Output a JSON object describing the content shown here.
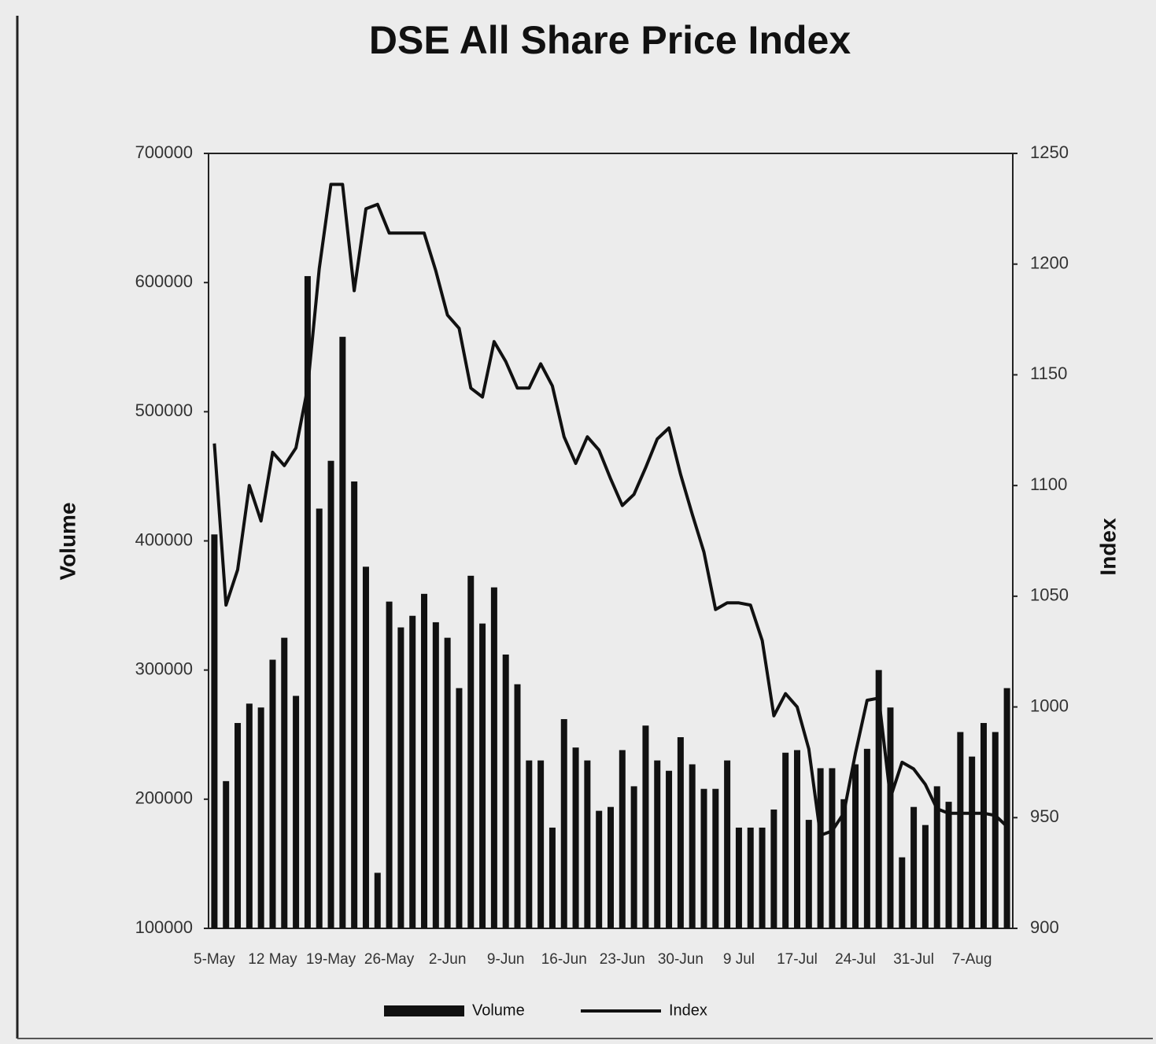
{
  "chart_data": {
    "type": "bar-line",
    "title": "DSE All Share Price Index",
    "y_label": "Volume",
    "y2_label": "Index",
    "categories": [
      "5-May",
      null,
      null,
      null,
      null,
      "12 May",
      null,
      null,
      null,
      null,
      "19-May",
      null,
      null,
      null,
      null,
      "26-May",
      null,
      null,
      null,
      null,
      "2-Jun",
      null,
      null,
      null,
      null,
      "9-Jun",
      null,
      null,
      null,
      null,
      "16-Jun",
      null,
      null,
      null,
      null,
      "23-Jun",
      null,
      null,
      null,
      null,
      "30-Jun",
      null,
      null,
      null,
      null,
      "9 Jul",
      null,
      null,
      null,
      null,
      "17-Jul",
      null,
      null,
      null,
      null,
      "24-Jul",
      null,
      null,
      null,
      null,
      "31-Jul",
      null,
      null,
      null,
      null,
      "7-Aug",
      null,
      null,
      null
    ],
    "series": [
      {
        "name": "Volume",
        "type": "bar",
        "color": "#111111",
        "values": [
          405000,
          214000,
          259000,
          274000,
          271000,
          308000,
          325000,
          280000,
          605000,
          425000,
          462000,
          558000,
          446000,
          380000,
          143000,
          353000,
          333000,
          342000,
          359000,
          337000,
          325000,
          286000,
          373000,
          336000,
          364000,
          312000,
          289000,
          230000,
          230000,
          178000,
          262000,
          240000,
          230000,
          191000,
          194000,
          238000,
          210000,
          257000,
          230000,
          222000,
          248000,
          227000,
          208000,
          208000,
          230000,
          178000,
          178000,
          178000,
          192000,
          236000,
          238000,
          184000,
          224000,
          224000,
          200000,
          227000,
          239000,
          300000,
          271000,
          155000,
          194000,
          180000,
          210000,
          198000,
          252000,
          233000,
          259000,
          252000,
          286000
        ]
      },
      {
        "name": "Index",
        "type": "line",
        "axis": "y2",
        "color": "#111111",
        "values": [
          1119,
          1046,
          1062,
          1100,
          1084,
          1115,
          1109,
          1117,
          1144,
          1198,
          1236,
          1236,
          1188,
          1225,
          1227,
          1214,
          1214,
          1214,
          1214,
          1197,
          1177,
          1171,
          1144,
          1140,
          1165,
          1156,
          1144,
          1144,
          1155,
          1145,
          1122,
          1110,
          1122,
          1116,
          1103,
          1091,
          1096,
          1108,
          1121,
          1126,
          1105,
          1087,
          1070,
          1044,
          1047,
          1047,
          1046,
          1030,
          996,
          1006,
          1000,
          981,
          942,
          944,
          952,
          979,
          1003,
          1004,
          959,
          975,
          972,
          965,
          954,
          952,
          952,
          952,
          952,
          951,
          946
        ]
      }
    ],
    "ylim": [
      100000,
      700000
    ],
    "yticks": [
      100000,
      200000,
      300000,
      400000,
      500000,
      600000,
      700000
    ],
    "y2lim": [
      900,
      1250
    ],
    "y2ticks": [
      900,
      950,
      1000,
      1050,
      1100,
      1150,
      1200,
      1250
    ],
    "legend": "bottom"
  }
}
